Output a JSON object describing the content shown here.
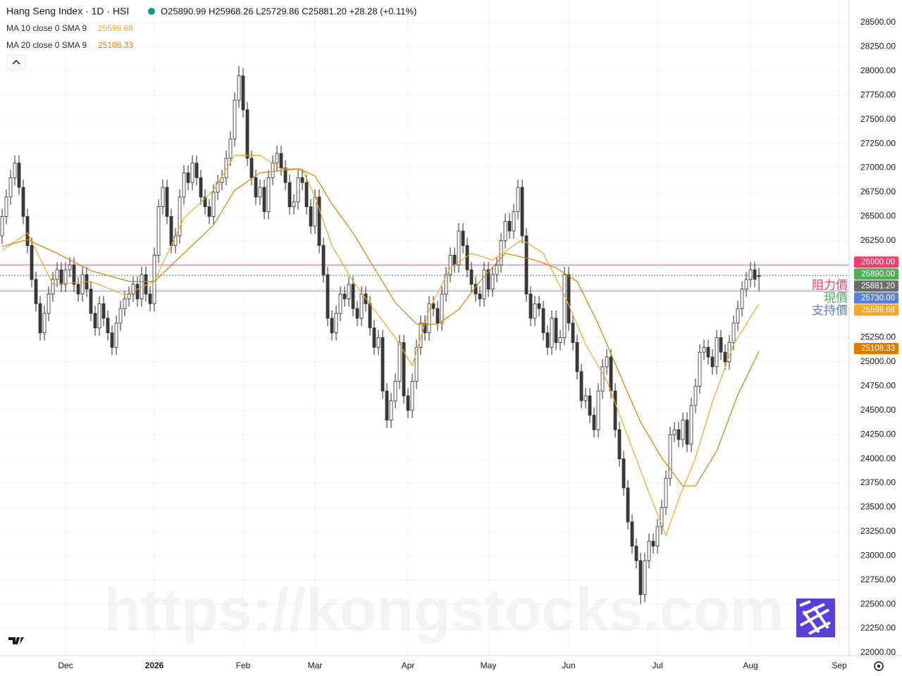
{
  "chart_data": {
    "type": "candlestick",
    "title": "Hang Seng Index · 1D · HSI",
    "ohlc_text": "O25890.99 H25968.26 L25729.86 C25881.20 +28.28 (+0.11%)",
    "watermark": "https://kongstocks.com",
    "up_color": "#ffffff",
    "down_color": "#3a3a3a",
    "border_color": "#2a2a2a",
    "xlim": [
      -0.5,
      200.5
    ],
    "ylim": [
      22000,
      28500
    ],
    "xticks": [
      {
        "value": 15,
        "label": "Dec"
      },
      {
        "value": 36,
        "label": "2026"
      },
      {
        "value": 57,
        "label": "Feb"
      },
      {
        "value": 74,
        "label": "Mar"
      },
      {
        "value": 96,
        "label": "Apr"
      },
      {
        "value": 115,
        "label": "May"
      },
      {
        "value": 134,
        "label": "Jun"
      },
      {
        "value": 155,
        "label": "Jul"
      },
      {
        "value": 177,
        "label": "Aug"
      },
      {
        "value": 198,
        "label": "Sep"
      }
    ],
    "yticks": [
      {
        "value": 22000,
        "label": "22000.00"
      },
      {
        "value": 22250,
        "label": "22250.00"
      },
      {
        "value": 22500,
        "label": "22500.00"
      },
      {
        "value": 22750,
        "label": "22750.00"
      },
      {
        "value": 23000,
        "label": "23000.00"
      },
      {
        "value": 23250,
        "label": "23250.00"
      },
      {
        "value": 23500,
        "label": "23500.00"
      },
      {
        "value": 23750,
        "label": "23750.00"
      },
      {
        "value": 24000,
        "label": "24000.00"
      },
      {
        "value": 24250,
        "label": "24250.00"
      },
      {
        "value": 24500,
        "label": "24500.00"
      },
      {
        "value": 24750,
        "label": "24750.00"
      },
      {
        "value": 25000,
        "label": "25000.00"
      },
      {
        "value": 25250,
        "label": "25250.00"
      },
      {
        "value": 25500,
        "label": "25500.00"
      },
      {
        "value": 25750,
        "label": "25750.00"
      },
      {
        "value": 26000,
        "label": "26000.00"
      },
      {
        "value": 26250,
        "label": "26250.00"
      },
      {
        "value": 26500,
        "label": "26500.00"
      },
      {
        "value": 26750,
        "label": "26750.00"
      },
      {
        "value": 27000,
        "label": "27000.00"
      },
      {
        "value": 27250,
        "label": "27250.00"
      },
      {
        "value": 27500,
        "label": "27500.00"
      },
      {
        "value": 27750,
        "label": "27750.00"
      },
      {
        "value": 28000,
        "label": "28000.00"
      },
      {
        "value": 28250,
        "label": "28250.00"
      },
      {
        "value": 28500,
        "label": "28500.00"
      }
    ],
    "grid": true,
    "candles": [
      [
        26300,
        26580,
        26220,
        26500
      ],
      [
        26500,
        26780,
        26420,
        26700
      ],
      [
        26700,
        26980,
        26620,
        26900
      ],
      [
        26900,
        27130,
        26820,
        27050
      ],
      [
        27050,
        27130,
        26720,
        26800
      ],
      [
        26800,
        26880,
        26420,
        26500
      ],
      [
        26500,
        26580,
        26120,
        26200
      ],
      [
        26200,
        26280,
        25770,
        25850
      ],
      [
        25850,
        25930,
        25520,
        25600
      ],
      [
        25600,
        25680,
        25220,
        25300
      ],
      [
        25300,
        25580,
        25220,
        25500
      ],
      [
        25500,
        25780,
        25420,
        25700
      ],
      [
        25700,
        25930,
        25620,
        25850
      ],
      [
        25850,
        26030,
        25770,
        25950
      ],
      [
        25950,
        26030,
        25720,
        25800
      ],
      [
        25800,
        26030,
        25720,
        25950
      ],
      [
        25950,
        26080,
        25870,
        26000
      ],
      [
        26000,
        26080,
        25720,
        25800
      ],
      [
        25800,
        25880,
        25620,
        25700
      ],
      [
        25700,
        25980,
        25620,
        25900
      ],
      [
        25900,
        25980,
        25670,
        25750
      ],
      [
        25750,
        25830,
        25420,
        25500
      ],
      [
        25500,
        25580,
        25270,
        25350
      ],
      [
        25350,
        25680,
        25270,
        25600
      ],
      [
        25600,
        25680,
        25370,
        25450
      ],
      [
        25450,
        25530,
        25220,
        25300
      ],
      [
        25300,
        25380,
        25070,
        25150
      ],
      [
        25150,
        25480,
        25070,
        25400
      ],
      [
        25400,
        25630,
        25320,
        25550
      ],
      [
        25550,
        25730,
        25470,
        25650
      ],
      [
        25650,
        25780,
        25570,
        25700
      ],
      [
        25700,
        25880,
        25620,
        25800
      ],
      [
        25800,
        25880,
        25570,
        25650
      ],
      [
        25650,
        25980,
        25570,
        25900
      ],
      [
        25900,
        25980,
        25620,
        25700
      ],
      [
        25700,
        25780,
        25520,
        25600
      ],
      [
        25600,
        26180,
        25520,
        26100
      ],
      [
        26100,
        26680,
        26020,
        26600
      ],
      [
        26600,
        26880,
        26520,
        26800
      ],
      [
        26800,
        26880,
        26420,
        26500
      ],
      [
        26500,
        26580,
        26120,
        26200
      ],
      [
        26200,
        26380,
        26120,
        26300
      ],
      [
        26300,
        26780,
        26220,
        26700
      ],
      [
        26700,
        27030,
        26620,
        26950
      ],
      [
        26950,
        27030,
        26770,
        26850
      ],
      [
        26850,
        27130,
        26770,
        27050
      ],
      [
        27050,
        27130,
        26820,
        26900
      ],
      [
        26900,
        26980,
        26620,
        26700
      ],
      [
        26700,
        26780,
        26520,
        26600
      ],
      [
        26600,
        26680,
        26420,
        26500
      ],
      [
        26500,
        26830,
        26420,
        26750
      ],
      [
        26750,
        26930,
        26670,
        26850
      ],
      [
        26850,
        26980,
        26770,
        26900
      ],
      [
        26900,
        27180,
        26820,
        27100
      ],
      [
        27100,
        27380,
        27020,
        27300
      ],
      [
        27300,
        27780,
        27220,
        27700
      ],
      [
        27700,
        28050,
        27620,
        27950
      ],
      [
        27950,
        28030,
        27520,
        27600
      ],
      [
        27600,
        27680,
        27020,
        27100
      ],
      [
        27100,
        27180,
        26820,
        26900
      ],
      [
        26900,
        26980,
        26620,
        26700
      ],
      [
        26700,
        26880,
        26620,
        26800
      ],
      [
        26800,
        26880,
        26470,
        26550
      ],
      [
        26550,
        26980,
        26470,
        26900
      ],
      [
        26900,
        27130,
        26820,
        27050
      ],
      [
        27050,
        27230,
        26970,
        27150
      ],
      [
        27150,
        27230,
        26920,
        27000
      ],
      [
        27000,
        27080,
        26770,
        26850
      ],
      [
        26850,
        26930,
        26520,
        26600
      ],
      [
        26600,
        26730,
        26520,
        26650
      ],
      [
        26650,
        26980,
        26570,
        26900
      ],
      [
        26900,
        26980,
        26770,
        26850
      ],
      [
        26850,
        26930,
        26520,
        26600
      ],
      [
        26600,
        26680,
        26320,
        26400
      ],
      [
        26400,
        26780,
        26320,
        26700
      ],
      [
        26700,
        26780,
        26120,
        26200
      ],
      [
        26200,
        26280,
        25820,
        25900
      ],
      [
        25900,
        25980,
        25370,
        25450
      ],
      [
        25450,
        25530,
        25220,
        25300
      ],
      [
        25300,
        25580,
        25220,
        25500
      ],
      [
        25500,
        25780,
        25420,
        25700
      ],
      [
        25700,
        25780,
        25570,
        25650
      ],
      [
        25650,
        25880,
        25570,
        25800
      ],
      [
        25800,
        25880,
        25470,
        25550
      ],
      [
        25550,
        25630,
        25370,
        25450
      ],
      [
        25450,
        25780,
        25370,
        25700
      ],
      [
        25700,
        25780,
        25520,
        25600
      ],
      [
        25600,
        25680,
        25270,
        25350
      ],
      [
        25350,
        25430,
        25070,
        25150
      ],
      [
        25150,
        25330,
        25070,
        25250
      ],
      [
        25250,
        25330,
        24620,
        24700
      ],
      [
        24700,
        24780,
        24320,
        24400
      ],
      [
        24400,
        24680,
        24320,
        24600
      ],
      [
        24600,
        24880,
        24520,
        24800
      ],
      [
        24800,
        25280,
        24720,
        25200
      ],
      [
        25200,
        25280,
        24570,
        24650
      ],
      [
        24650,
        24730,
        24420,
        24500
      ],
      [
        24500,
        24880,
        24420,
        24800
      ],
      [
        24800,
        25230,
        24720,
        25150
      ],
      [
        25150,
        25480,
        25070,
        25400
      ],
      [
        25400,
        25480,
        25220,
        25300
      ],
      [
        25300,
        25680,
        25220,
        25600
      ],
      [
        25600,
        25680,
        25470,
        25550
      ],
      [
        25550,
        25630,
        25320,
        25400
      ],
      [
        25400,
        25780,
        25320,
        25700
      ],
      [
        25700,
        25980,
        25620,
        25900
      ],
      [
        25900,
        26180,
        25820,
        26100
      ],
      [
        26100,
        26180,
        25920,
        26000
      ],
      [
        26000,
        26430,
        25920,
        26350
      ],
      [
        26350,
        26430,
        26120,
        26200
      ],
      [
        26200,
        26280,
        25870,
        25950
      ],
      [
        25950,
        26030,
        25720,
        25800
      ],
      [
        25800,
        25880,
        25620,
        25700
      ],
      [
        25700,
        25780,
        25570,
        25650
      ],
      [
        25650,
        26030,
        25570,
        25950
      ],
      [
        25950,
        26030,
        25670,
        25750
      ],
      [
        25750,
        25980,
        25670,
        25900
      ],
      [
        25900,
        26080,
        25820,
        26000
      ],
      [
        26000,
        26330,
        25920,
        26250
      ],
      [
        26250,
        26530,
        26170,
        26450
      ],
      [
        26450,
        26530,
        26270,
        26350
      ],
      [
        26350,
        26630,
        26270,
        26550
      ],
      [
        26550,
        26880,
        26470,
        26800
      ],
      [
        26800,
        26880,
        26220,
        26300
      ],
      [
        26300,
        26380,
        25620,
        25700
      ],
      [
        25700,
        25780,
        25370,
        25450
      ],
      [
        25450,
        25680,
        25370,
        25600
      ],
      [
        25600,
        25680,
        25470,
        25550
      ],
      [
        25550,
        25630,
        25220,
        25300
      ],
      [
        25300,
        25380,
        25070,
        25150
      ],
      [
        25150,
        25530,
        25070,
        25450
      ],
      [
        25450,
        25530,
        25120,
        25200
      ],
      [
        25200,
        25330,
        25120,
        25250
      ],
      [
        25250,
        25980,
        25170,
        25900
      ],
      [
        25900,
        25980,
        25320,
        25400
      ],
      [
        25400,
        25480,
        25120,
        25200
      ],
      [
        25200,
        25280,
        24820,
        24900
      ],
      [
        24900,
        24980,
        24520,
        24600
      ],
      [
        24600,
        24730,
        24520,
        24650
      ],
      [
        24650,
        24730,
        24370,
        24450
      ],
      [
        24450,
        24530,
        24220,
        24300
      ],
      [
        24300,
        24780,
        24220,
        24700
      ],
      [
        24700,
        25030,
        24620,
        24950
      ],
      [
        24950,
        25130,
        24870,
        25050
      ],
      [
        25050,
        25130,
        24620,
        24700
      ],
      [
        24700,
        24780,
        24220,
        24300
      ],
      [
        24300,
        24380,
        23920,
        24000
      ],
      [
        24000,
        24080,
        23620,
        23700
      ],
      [
        23700,
        23780,
        23270,
        23350
      ],
      [
        23350,
        23430,
        23020,
        23100
      ],
      [
        23100,
        23180,
        22870,
        22950
      ],
      [
        22950,
        23030,
        22500,
        22600
      ],
      [
        22600,
        23030,
        22520,
        22950
      ],
      [
        22950,
        23230,
        22870,
        23150
      ],
      [
        23150,
        23230,
        23020,
        23100
      ],
      [
        23100,
        23380,
        23020,
        23300
      ],
      [
        23300,
        23580,
        23220,
        23500
      ],
      [
        23500,
        23880,
        23420,
        23800
      ],
      [
        23800,
        24330,
        23720,
        24250
      ],
      [
        24250,
        24380,
        24170,
        24300
      ],
      [
        24300,
        24380,
        24120,
        24200
      ],
      [
        24200,
        24480,
        24120,
        24400
      ],
      [
        24400,
        24480,
        24070,
        24150
      ],
      [
        24150,
        24630,
        24070,
        24550
      ],
      [
        24550,
        24830,
        24470,
        24750
      ],
      [
        24750,
        25180,
        24670,
        25100
      ],
      [
        25100,
        25230,
        25020,
        25150
      ],
      [
        25150,
        25230,
        24970,
        25050
      ],
      [
        25050,
        25130,
        24870,
        24950
      ],
      [
        24950,
        25330,
        24870,
        25250
      ],
      [
        25250,
        25330,
        25020,
        25100
      ],
      [
        25100,
        25180,
        24920,
        25000
      ],
      [
        25000,
        25280,
        24920,
        25200
      ],
      [
        25200,
        25480,
        25120,
        25400
      ],
      [
        25400,
        25630,
        25320,
        25550
      ],
      [
        25550,
        25830,
        25470,
        25750
      ],
      [
        25750,
        25930,
        25670,
        25850
      ],
      [
        25850,
        26030,
        25770,
        25950
      ],
      [
        25950,
        26030,
        25770,
        25852.92
      ],
      [
        25890.99,
        25968.26,
        25729.86,
        25881.2
      ]
    ],
    "series": [
      {
        "name": "MA 10 close 0 SMA 9",
        "color": "#f5a623",
        "x": [
          0,
          6,
          12,
          21,
          29,
          36,
          43,
          50,
          55,
          61,
          66,
          71,
          74,
          78,
          83,
          88,
          93,
          97,
          101,
          106,
          111,
          116,
          123,
          128,
          133,
          138,
          143,
          148,
          153,
          157,
          160,
          164,
          168,
          173,
          179
        ],
        "values": [
          26150,
          26330,
          25800,
          25830,
          25690,
          25830,
          26480,
          26770,
          27130,
          27130,
          26990,
          26990,
          26700,
          26200,
          25830,
          25540,
          25250,
          24960,
          25540,
          25970,
          26120,
          26050,
          26260,
          26120,
          25690,
          25180,
          24810,
          24230,
          23650,
          23210,
          23580,
          24010,
          24590,
          25180,
          25598.68
        ]
      },
      {
        "name": "MA 20 close 0 SMA 9",
        "color": "#e07b00",
        "x": [
          0,
          6,
          13,
          21,
          30,
          36,
          43,
          50,
          55,
          61,
          70,
          74,
          78,
          83,
          88,
          93,
          98,
          103,
          108,
          113,
          119,
          126,
          131,
          136,
          141,
          146,
          151,
          156,
          161,
          164,
          169,
          174,
          179
        ],
        "values": [
          26190,
          26260,
          26120,
          25940,
          25830,
          25830,
          26120,
          26410,
          26770,
          26950,
          26990,
          26920,
          26630,
          26330,
          25970,
          25610,
          25390,
          25390,
          25540,
          25830,
          26120,
          26050,
          25970,
          25830,
          25390,
          24880,
          24380,
          24010,
          23720,
          23720,
          24080,
          24660,
          25108.33
        ]
      }
    ],
    "levels": [
      {
        "name": "阻力價",
        "value": 26000,
        "label": "26000.00",
        "color": "#f23f6b",
        "line_color": "#f48fb1",
        "dashed": false
      },
      {
        "name": "現價",
        "value": 25890,
        "label": "25890.00",
        "color": "#4caf50",
        "line_color": "#66bb6a",
        "dashed": true
      },
      {
        "name": "支持價",
        "value": 25730,
        "label": "25730.00",
        "color": "#5b7fd6",
        "line_color": "#a3b4ec",
        "dashed": false
      }
    ],
    "last_price": {
      "value": 25881.2,
      "label": "25881.20",
      "color": "#6b6b6b"
    }
  }
}
